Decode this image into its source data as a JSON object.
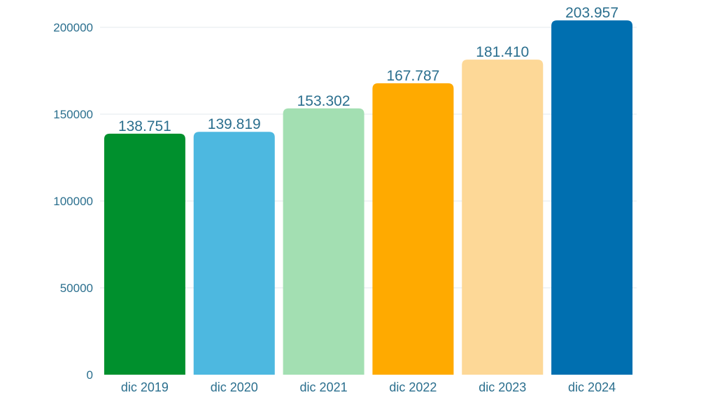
{
  "chart_data": {
    "type": "bar",
    "categories": [
      "dic 2019",
      "dic 2020",
      "dic 2021",
      "dic 2022",
      "dic 2023",
      "dic 2024"
    ],
    "values": [
      138751,
      139819,
      153302,
      167787,
      181410,
      203957
    ],
    "data_labels": [
      "138.751",
      "139.819",
      "153.302",
      "167.787",
      "181.410",
      "203.957"
    ],
    "bar_colors": [
      "#00902d",
      "#4db8e0",
      "#a3dfb2",
      "#ffaa00",
      "#fdd897",
      "#006fb0"
    ],
    "y_ticks": [
      0,
      50000,
      100000,
      150000,
      200000
    ],
    "y_tick_labels": [
      "0",
      "50000",
      "100000",
      "150000",
      "200000"
    ],
    "ylim": [
      0,
      200000
    ],
    "grid": true,
    "title": "",
    "xlabel": "",
    "ylabel": ""
  }
}
